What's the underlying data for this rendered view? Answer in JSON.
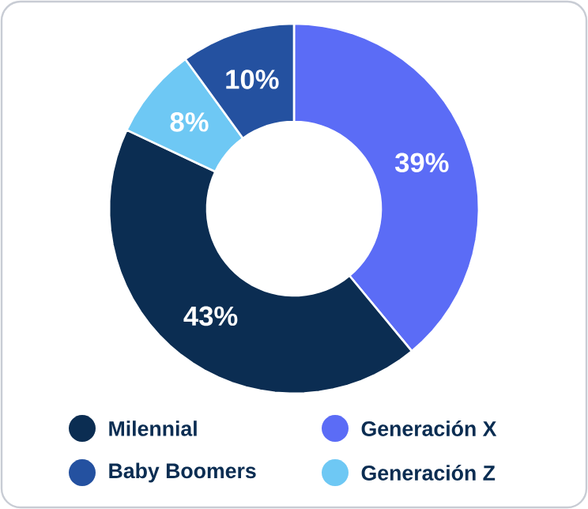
{
  "chart_data": {
    "type": "donut",
    "categories": [
      "Generación X",
      "Milennial",
      "Generación Z",
      "Baby Boomers"
    ],
    "values": [
      39,
      43,
      8,
      10
    ],
    "colors": [
      "#5b6cf6",
      "#0b2d52",
      "#6ec8f4",
      "#2451a0"
    ],
    "value_labels": [
      "39%",
      "43%",
      "8%",
      "10%"
    ],
    "legend": "bottom"
  }
}
